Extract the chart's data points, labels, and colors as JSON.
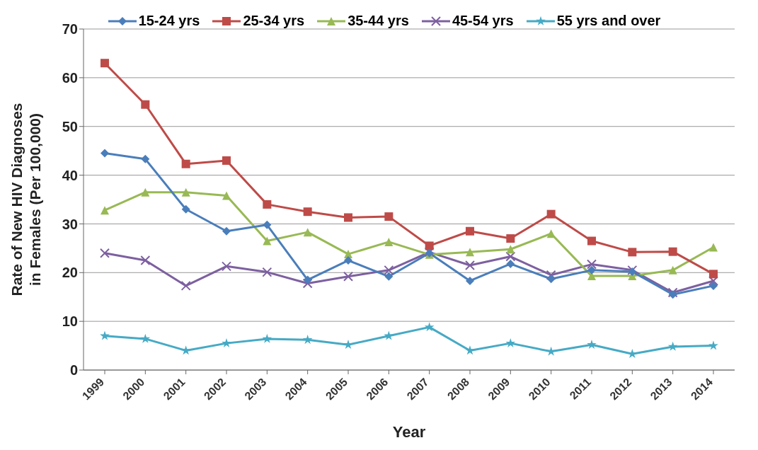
{
  "chart_data": {
    "type": "line",
    "xlabel": "Year",
    "ylabel": "Rate of New HIV Diagnoses in Females (Per 100,000)",
    "categories": [
      "1999",
      "2000",
      "2001",
      "2002",
      "2003",
      "2004",
      "2005",
      "2006",
      "2007",
      "2008",
      "2009",
      "2010",
      "2011",
      "2012",
      "2013",
      "2014"
    ],
    "series": [
      {
        "name": "15-24 yrs",
        "color": "#4a7ebb",
        "marker": "diamond",
        "values": [
          44.5,
          43.3,
          33,
          28.5,
          29.8,
          18.5,
          22.5,
          19.2,
          24,
          18.3,
          21.8,
          18.7,
          20.5,
          20.2,
          15.5,
          17.3
        ]
      },
      {
        "name": "25-34 yrs",
        "color": "#be4b48",
        "marker": "square",
        "values": [
          63,
          54.5,
          42.3,
          43,
          34,
          32.5,
          31.3,
          31.5,
          25.5,
          28.5,
          27,
          32,
          26.5,
          24.2,
          24.3,
          19.7
        ]
      },
      {
        "name": "35-44 yrs",
        "color": "#98b954",
        "marker": "triangle",
        "values": [
          32.8,
          36.5,
          36.5,
          35.8,
          26.5,
          28.3,
          23.8,
          26.3,
          23.7,
          24.2,
          24.8,
          28,
          19.3,
          19.3,
          20.5,
          25.2
        ]
      },
      {
        "name": "45-54 yrs",
        "color": "#7d60a0",
        "marker": "cross",
        "values": [
          24,
          22.5,
          17.3,
          21.3,
          20.1,
          17.8,
          19.2,
          20.5,
          24.2,
          21.5,
          23.3,
          19.5,
          21.7,
          20.5,
          15.9,
          18.3
        ]
      },
      {
        "name": "55 yrs and over",
        "color": "#46aac5",
        "marker": "star",
        "values": [
          7,
          6.4,
          4,
          5.5,
          6.4,
          6.2,
          5.2,
          7,
          8.8,
          4,
          5.5,
          3.8,
          5.2,
          3.3,
          4.8,
          5
        ]
      }
    ],
    "ylim": [
      0,
      70
    ],
    "yticks": [
      0,
      10,
      20,
      30,
      40,
      50,
      60,
      70
    ],
    "grid": "y",
    "legend": "top"
  }
}
